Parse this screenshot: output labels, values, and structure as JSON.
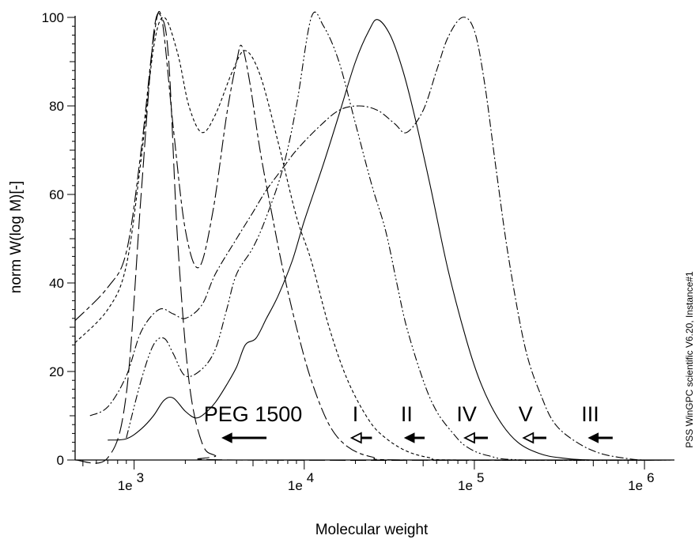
{
  "chart_data": {
    "type": "line",
    "xlabel": "Molecular weight",
    "ylabel": "norm W(log M)[-]",
    "x_scale": "log",
    "xlim": [
      450,
      1500000
    ],
    "ylim": [
      0,
      100
    ],
    "y_ticks": [
      0,
      20,
      40,
      60,
      80,
      100
    ],
    "x_tick_labels": [
      {
        "value": 1000,
        "text": "1e 3"
      },
      {
        "value": 10000,
        "text": "1e 4"
      },
      {
        "value": 100000,
        "text": "1e 5"
      },
      {
        "value": 1000000,
        "text": "1e 6"
      }
    ],
    "grid": false,
    "legend": "none",
    "series": [
      {
        "style": "long-dash",
        "points": [
          [
            450,
            0
          ],
          [
            700,
            0.5
          ],
          [
            900,
            15
          ],
          [
            1100,
            60
          ],
          [
            1300,
            96
          ],
          [
            1450,
            100
          ],
          [
            1600,
            90
          ],
          [
            1800,
            50
          ],
          [
            2100,
            18
          ],
          [
            2500,
            4
          ],
          [
            3000,
            1
          ],
          [
            4000,
            0
          ],
          [
            1500000,
            0
          ]
        ]
      },
      {
        "style": "long-dash-short",
        "points": [
          [
            450,
            31.5
          ],
          [
            700,
            39
          ],
          [
            900,
            47
          ],
          [
            1100,
            70
          ],
          [
            1300,
            95
          ],
          [
            1450,
            100
          ],
          [
            1700,
            75
          ],
          [
            2000,
            52
          ],
          [
            2400,
            43.5
          ],
          [
            2900,
            56
          ],
          [
            3500,
            78
          ],
          [
            4000,
            90
          ],
          [
            4300,
            93.5
          ],
          [
            4800,
            85
          ],
          [
            5500,
            70
          ],
          [
            6500,
            55
          ],
          [
            7500,
            43
          ],
          [
            9000,
            30
          ],
          [
            11000,
            18
          ],
          [
            14000,
            8
          ],
          [
            18000,
            3
          ],
          [
            25000,
            0.7
          ],
          [
            40000,
            0
          ],
          [
            1500000,
            0
          ]
        ]
      },
      {
        "style": "short-dash",
        "points": [
          [
            450,
            26.5
          ],
          [
            700,
            34
          ],
          [
            900,
            44
          ],
          [
            1100,
            68
          ],
          [
            1300,
            93
          ],
          [
            1500,
            100
          ],
          [
            1800,
            92
          ],
          [
            2100,
            80
          ],
          [
            2500,
            74
          ],
          [
            3000,
            78
          ],
          [
            3800,
            88
          ],
          [
            4500,
            92.5
          ],
          [
            5500,
            87
          ],
          [
            7000,
            72
          ],
          [
            9000,
            55
          ],
          [
            11000,
            45
          ],
          [
            14000,
            30
          ],
          [
            18000,
            18
          ],
          [
            24000,
            9
          ],
          [
            30000,
            5
          ],
          [
            40000,
            2
          ],
          [
            55000,
            0.5
          ],
          [
            80000,
            0
          ],
          [
            1500000,
            0
          ]
        ]
      },
      {
        "style": "dash-dot",
        "points": [
          [
            550,
            10
          ],
          [
            700,
            12
          ],
          [
            900,
            19
          ],
          [
            1100,
            29
          ],
          [
            1400,
            34
          ],
          [
            1700,
            33
          ],
          [
            2000,
            32
          ],
          [
            2500,
            35
          ],
          [
            3000,
            42
          ],
          [
            4000,
            50
          ],
          [
            5000,
            56
          ],
          [
            6000,
            61
          ],
          [
            7500,
            66
          ],
          [
            9000,
            70
          ],
          [
            12000,
            75
          ],
          [
            16000,
            79
          ],
          [
            21000,
            80
          ],
          [
            27000,
            79
          ],
          [
            34000,
            76
          ],
          [
            40000,
            74
          ],
          [
            50000,
            79
          ],
          [
            60000,
            88
          ],
          [
            70000,
            95.5
          ],
          [
            85000,
            100
          ],
          [
            100000,
            97
          ],
          [
            115000,
            85
          ],
          [
            135000,
            65
          ],
          [
            160000,
            45
          ],
          [
            200000,
            25
          ],
          [
            250000,
            14
          ],
          [
            300000,
            8
          ],
          [
            400000,
            4
          ],
          [
            550000,
            1.5
          ],
          [
            800000,
            0.3
          ],
          [
            1000000,
            0
          ],
          [
            1500000,
            0
          ]
        ]
      },
      {
        "style": "dash-dot-dot",
        "points": [
          [
            900,
            5
          ],
          [
            1100,
            18
          ],
          [
            1300,
            26
          ],
          [
            1500,
            27.5
          ],
          [
            1700,
            24
          ],
          [
            2000,
            19
          ],
          [
            2500,
            20.5
          ],
          [
            3000,
            25
          ],
          [
            3500,
            34
          ],
          [
            4000,
            42
          ],
          [
            5000,
            48
          ],
          [
            6000,
            55
          ],
          [
            7500,
            66
          ],
          [
            9000,
            80
          ],
          [
            11000,
            100
          ],
          [
            13000,
            98
          ],
          [
            16000,
            90
          ],
          [
            20000,
            76
          ],
          [
            25000,
            62
          ],
          [
            30000,
            52
          ],
          [
            35000,
            40
          ],
          [
            40000,
            30
          ],
          [
            50000,
            18
          ],
          [
            60000,
            11
          ],
          [
            75000,
            6
          ],
          [
            90000,
            3
          ],
          [
            120000,
            1
          ],
          [
            200000,
            0
          ],
          [
            1500000,
            0
          ]
        ]
      },
      {
        "style": "solid",
        "points": [
          [
            700,
            4.5
          ],
          [
            900,
            4.8
          ],
          [
            1100,
            7
          ],
          [
            1300,
            10
          ],
          [
            1500,
            13.5
          ],
          [
            1700,
            14
          ],
          [
            2000,
            11
          ],
          [
            2300,
            9.5
          ],
          [
            2600,
            10.5
          ],
          [
            3000,
            13
          ],
          [
            3500,
            17
          ],
          [
            4000,
            21
          ],
          [
            4500,
            26
          ],
          [
            5200,
            27.5
          ],
          [
            6000,
            32
          ],
          [
            7000,
            37
          ],
          [
            8500,
            45
          ],
          [
            10000,
            54
          ],
          [
            13000,
            67
          ],
          [
            16000,
            78
          ],
          [
            20000,
            90
          ],
          [
            24000,
            97
          ],
          [
            27000,
            99.5
          ],
          [
            32000,
            96
          ],
          [
            38000,
            88
          ],
          [
            45000,
            77
          ],
          [
            55000,
            62
          ],
          [
            70000,
            43
          ],
          [
            90000,
            27
          ],
          [
            110000,
            17
          ],
          [
            140000,
            9
          ],
          [
            180000,
            4
          ],
          [
            240000,
            1.5
          ],
          [
            320000,
            0.5
          ],
          [
            500000,
            0
          ],
          [
            1500000,
            0
          ]
        ]
      }
    ],
    "annotations": [
      {
        "text": "PEG 1500",
        "x": 5000,
        "y": 10
      },
      {
        "text": "I",
        "x": 20000,
        "y": 10
      },
      {
        "text": "II",
        "x": 40000,
        "y": 10
      },
      {
        "text": "IV",
        "x": 90000,
        "y": 10
      },
      {
        "text": "V",
        "x": 200000,
        "y": 10
      },
      {
        "text": "III",
        "x": 480000,
        "y": 10
      }
    ],
    "arrows": [
      {
        "label": "PEG 1500",
        "x_from": 6000,
        "x_to": 3300,
        "y": 5,
        "head": "filled"
      },
      {
        "label": "I",
        "x_from": 25000,
        "x_to": 19000,
        "y": 5,
        "head": "open"
      },
      {
        "label": "II",
        "x_from": 51000,
        "x_to": 39000,
        "y": 5,
        "head": "filled"
      },
      {
        "label": "IV",
        "x_from": 120000,
        "x_to": 88000,
        "y": 5,
        "head": "open"
      },
      {
        "label": "V",
        "x_from": 265000,
        "x_to": 195000,
        "y": 5,
        "head": "open"
      },
      {
        "label": "III",
        "x_from": 650000,
        "x_to": 470000,
        "y": 5,
        "head": "filled"
      }
    ]
  },
  "side_note": "PSS WinGPC scientific  V6.20, Instance#1"
}
